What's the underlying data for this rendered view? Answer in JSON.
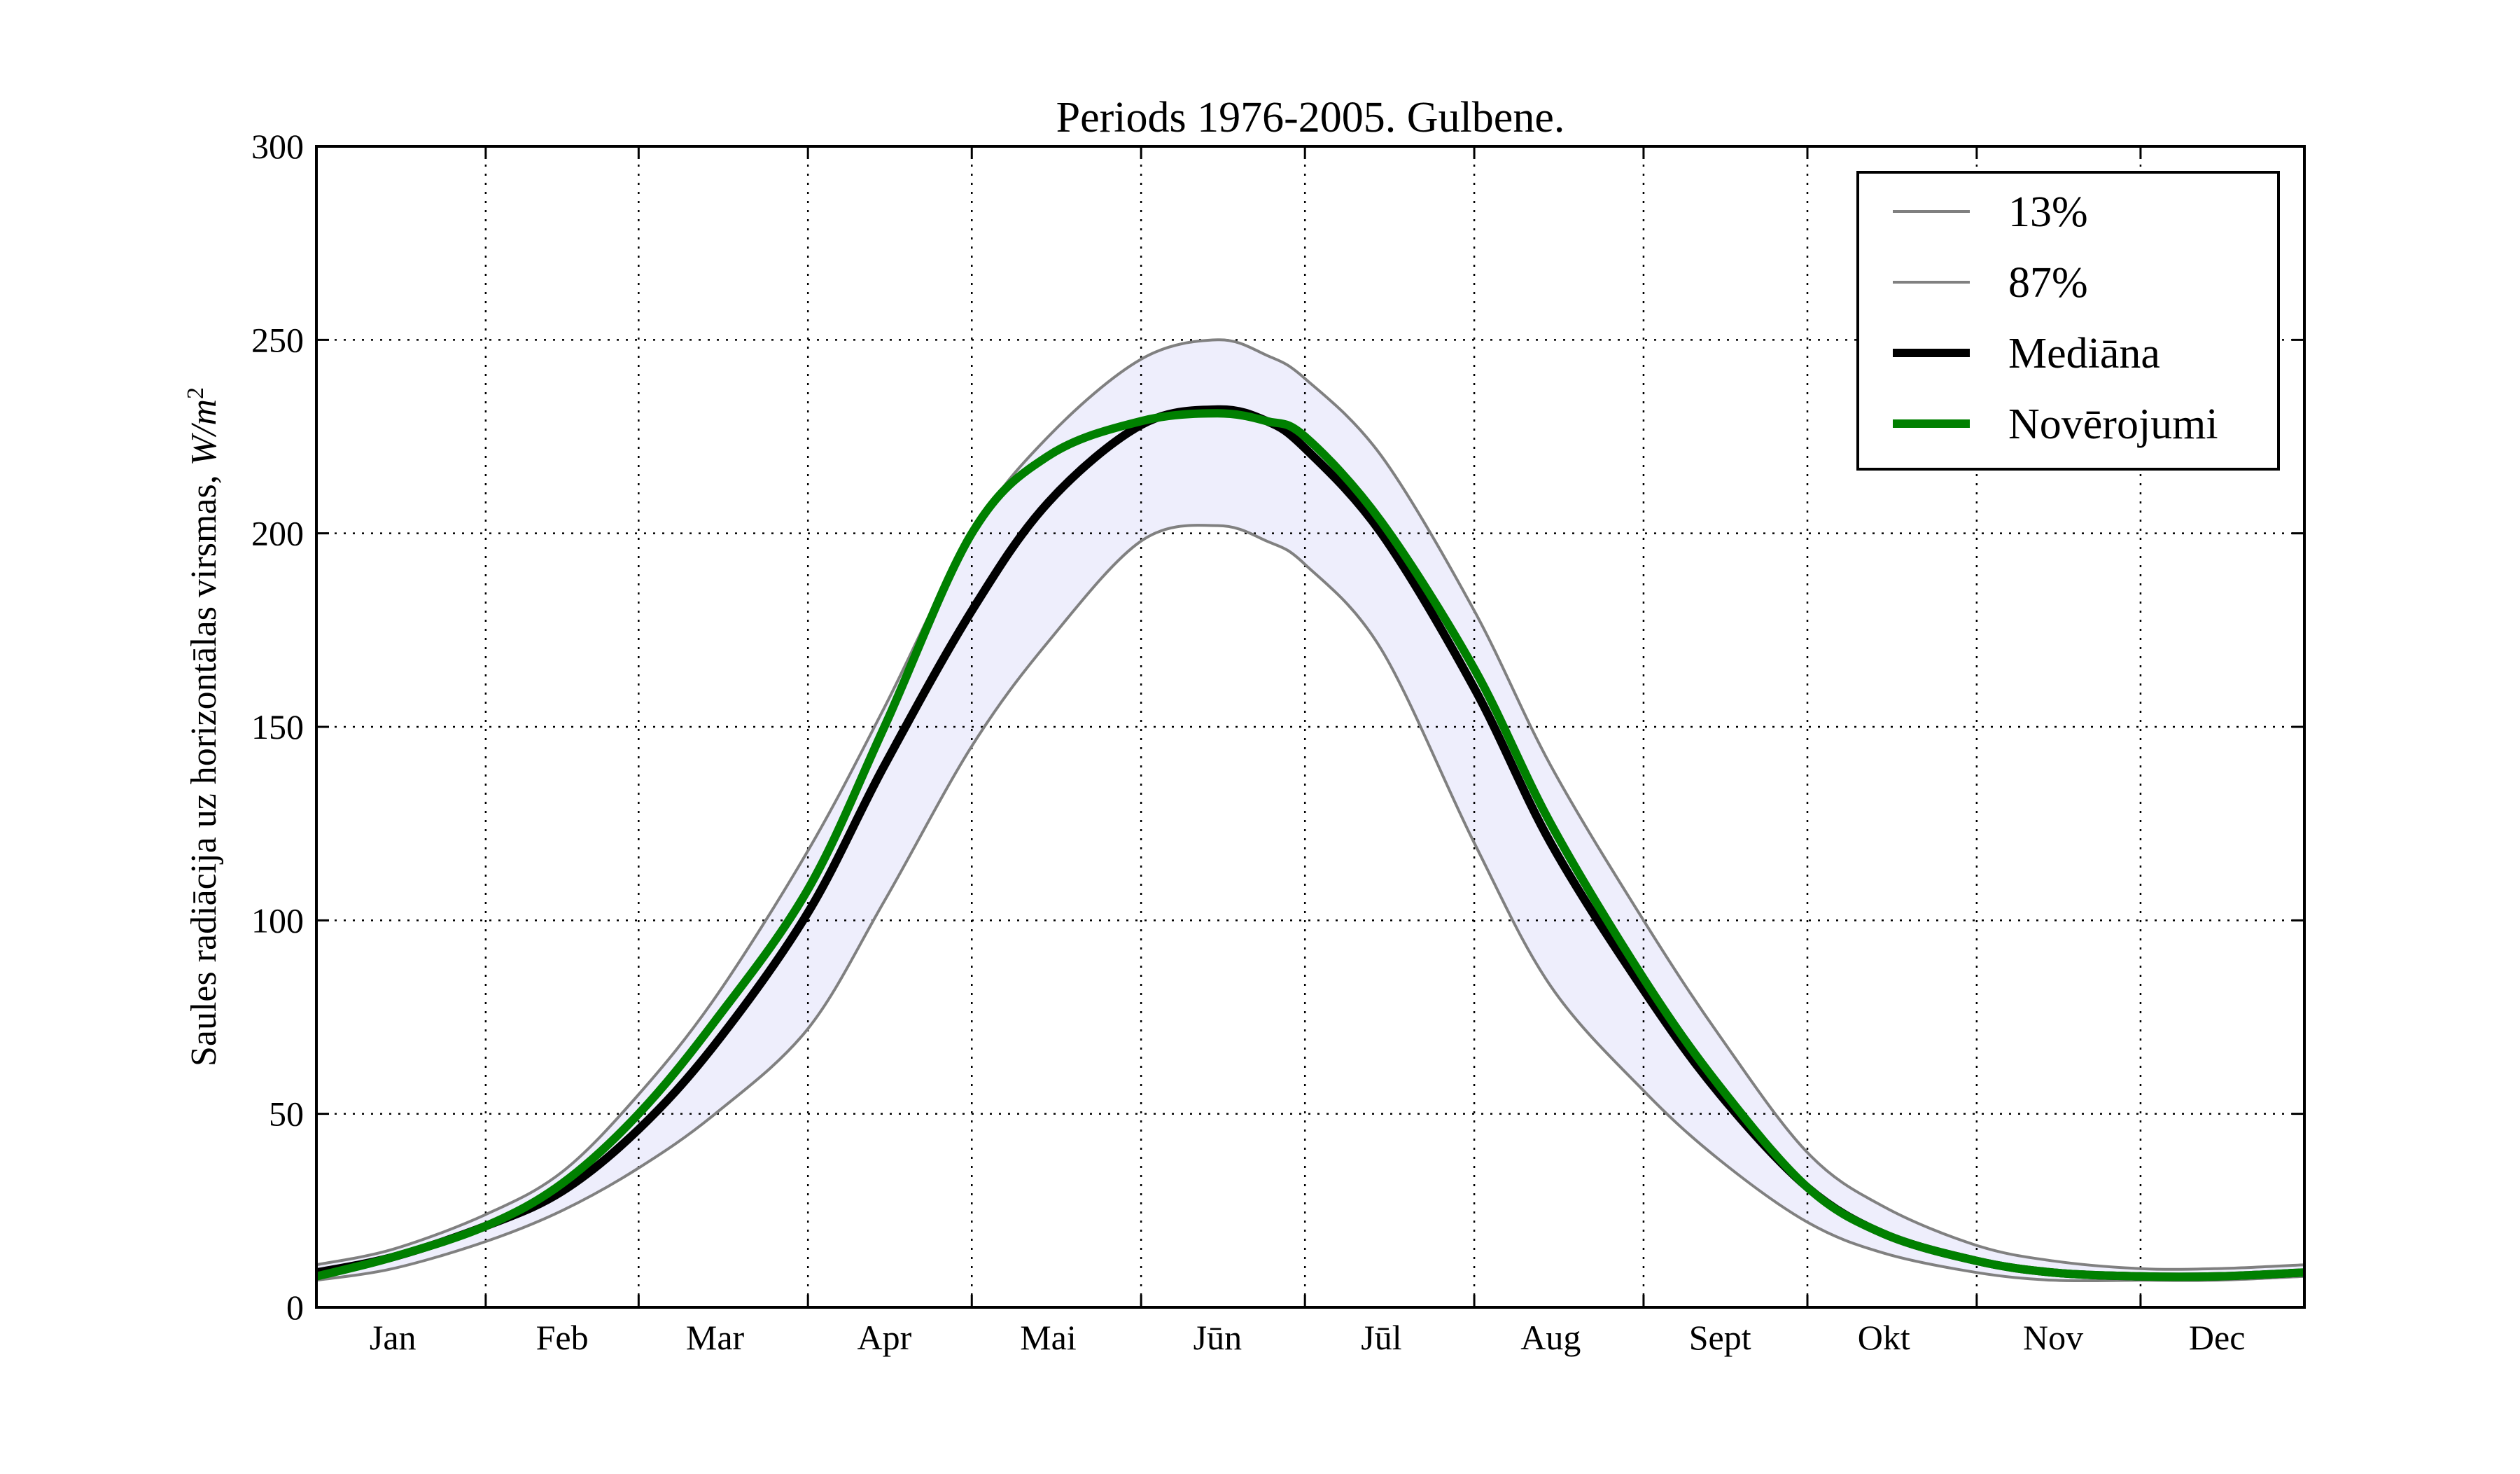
{
  "chart_data": {
    "type": "line",
    "title": "Periods 1976-2005. Gulbene.",
    "ylabel": "Saules radiācija uz horizontālas virsmas, ",
    "ylabel_units": "W/m",
    "ylabel_units_sup": "2",
    "xlabel": "",
    "ylim": [
      0,
      300
    ],
    "xlim": [
      1,
      365
    ],
    "yticks": [
      0,
      50,
      100,
      150,
      200,
      250,
      300
    ],
    "month_labels": [
      "Jan",
      "Feb",
      "Mar",
      "Apr",
      "Mai",
      "Jūn",
      "Jūl",
      "Aug",
      "Sept",
      "Okt",
      "Nov",
      "Dec"
    ],
    "month_label_days": [
      15,
      46,
      74,
      105,
      135,
      166,
      196,
      227,
      258,
      288,
      319,
      349
    ],
    "month_boundaries": [
      32,
      60,
      91,
      121,
      152,
      182,
      213,
      244,
      274,
      305,
      335
    ],
    "grid": true,
    "legend": "top-right",
    "band": {
      "lower": "13%",
      "upper": "87%",
      "color": "#eeeefc"
    },
    "x": [
      1,
      15,
      32,
      46,
      60,
      74,
      91,
      105,
      121,
      135,
      152,
      166,
      175,
      182,
      196,
      213,
      227,
      244,
      258,
      274,
      288,
      305,
      319,
      335,
      349,
      365
    ],
    "series": [
      {
        "name": "13%",
        "color": "#808080",
        "width": 4,
        "values": [
          7,
          10,
          17,
          25,
          36,
          50,
          72,
          105,
          145,
          172,
          198,
          202,
          198,
          192,
          170,
          120,
          83,
          56,
          38,
          22,
          14,
          9,
          7,
          7,
          7,
          8
        ]
      },
      {
        "name": "87%",
        "color": "#808080",
        "width": 4,
        "values": [
          11,
          15,
          24,
          35,
          55,
          80,
          118,
          155,
          200,
          225,
          245,
          250,
          246,
          240,
          220,
          180,
          140,
          100,
          70,
          40,
          26,
          16,
          12,
          10,
          10,
          11
        ]
      },
      {
        "name": "Mediāna",
        "color": "#000000",
        "width": 12,
        "values": [
          9,
          13,
          21,
          30,
          46,
          68,
          102,
          140,
          180,
          208,
          228,
          232,
          229,
          222,
          200,
          160,
          120,
          82,
          55,
          31,
          19,
          12,
          9,
          8,
          8,
          9
        ]
      },
      {
        "name": "Novērojumi",
        "color": "#008000",
        "width": 12,
        "values": [
          8,
          13,
          21,
          32,
          50,
          74,
          108,
          150,
          200,
          220,
          229,
          231,
          229,
          225,
          203,
          165,
          125,
          85,
          57,
          31,
          19,
          12,
          9,
          8,
          8,
          9
        ]
      }
    ]
  }
}
